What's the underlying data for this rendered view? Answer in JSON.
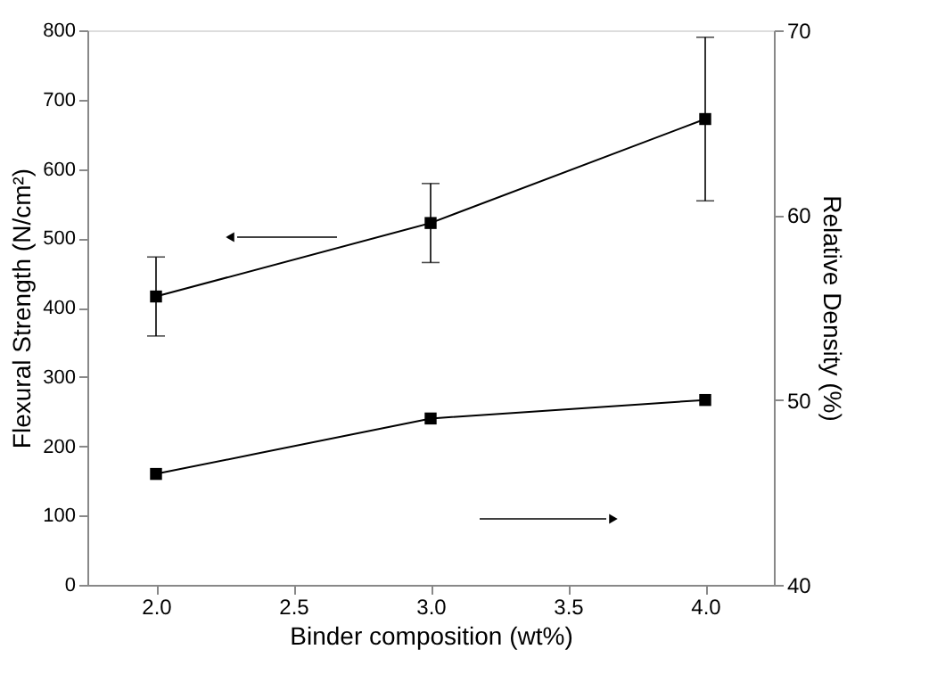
{
  "chart_data": {
    "type": "line",
    "xlabel": "Binder composition (wt%)",
    "ylabel": "Flexural Strength (N/cm²)",
    "y2label": "Relative Density (%)",
    "x": [
      2.0,
      3.0,
      4.0
    ],
    "series": [
      {
        "color": "#000000",
        "values": [
          416,
          522,
          672
        ],
        "errors": [
          57,
          57,
          118
        ]
      },
      {
        "color": "#000000",
        "values": [
          46,
          49,
          50
        ],
        "axis": "y2"
      }
    ],
    "xlim": [
      1.75,
      4.25
    ],
    "xticks": [
      {
        "value": 2.0,
        "label": "2.0"
      },
      {
        "value": 2.5,
        "label": "2.5"
      },
      {
        "value": 3.0,
        "label": "3.0"
      },
      {
        "value": 3.5,
        "label": "3.5"
      },
      {
        "value": 4.0,
        "label": "4.0"
      }
    ],
    "ylim": [
      0,
      800
    ],
    "yticks": [
      0,
      100,
      200,
      300,
      400,
      500,
      600,
      700,
      800
    ],
    "y2lim": [
      40,
      70
    ],
    "y2ticks": [
      40,
      50,
      60,
      70
    ],
    "marker": "square",
    "line_style": "solid",
    "grid": false
  }
}
